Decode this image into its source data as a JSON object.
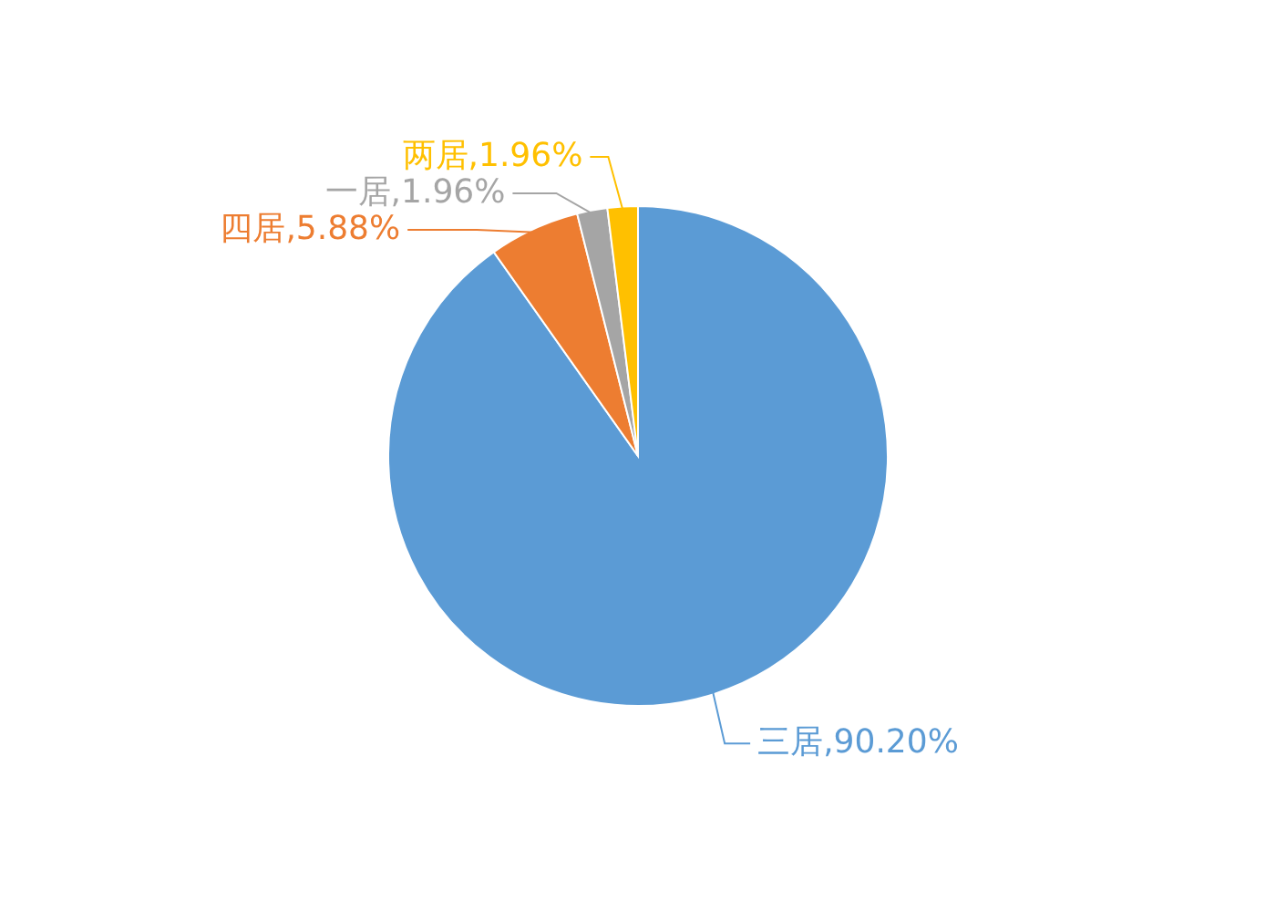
{
  "chart_data": {
    "type": "pie",
    "categories": [
      "三居",
      "四居",
      "一居",
      "两居"
    ],
    "values": [
      90.2,
      5.88,
      1.96,
      1.96
    ],
    "colors": [
      "#5b9bd5",
      "#ed7d31",
      "#a5a5a5",
      "#ffc000"
    ],
    "value_labels": [
      ",90.20%",
      ",5.88%",
      ",1.96%",
      ",1.96%"
    ],
    "legend": false
  }
}
